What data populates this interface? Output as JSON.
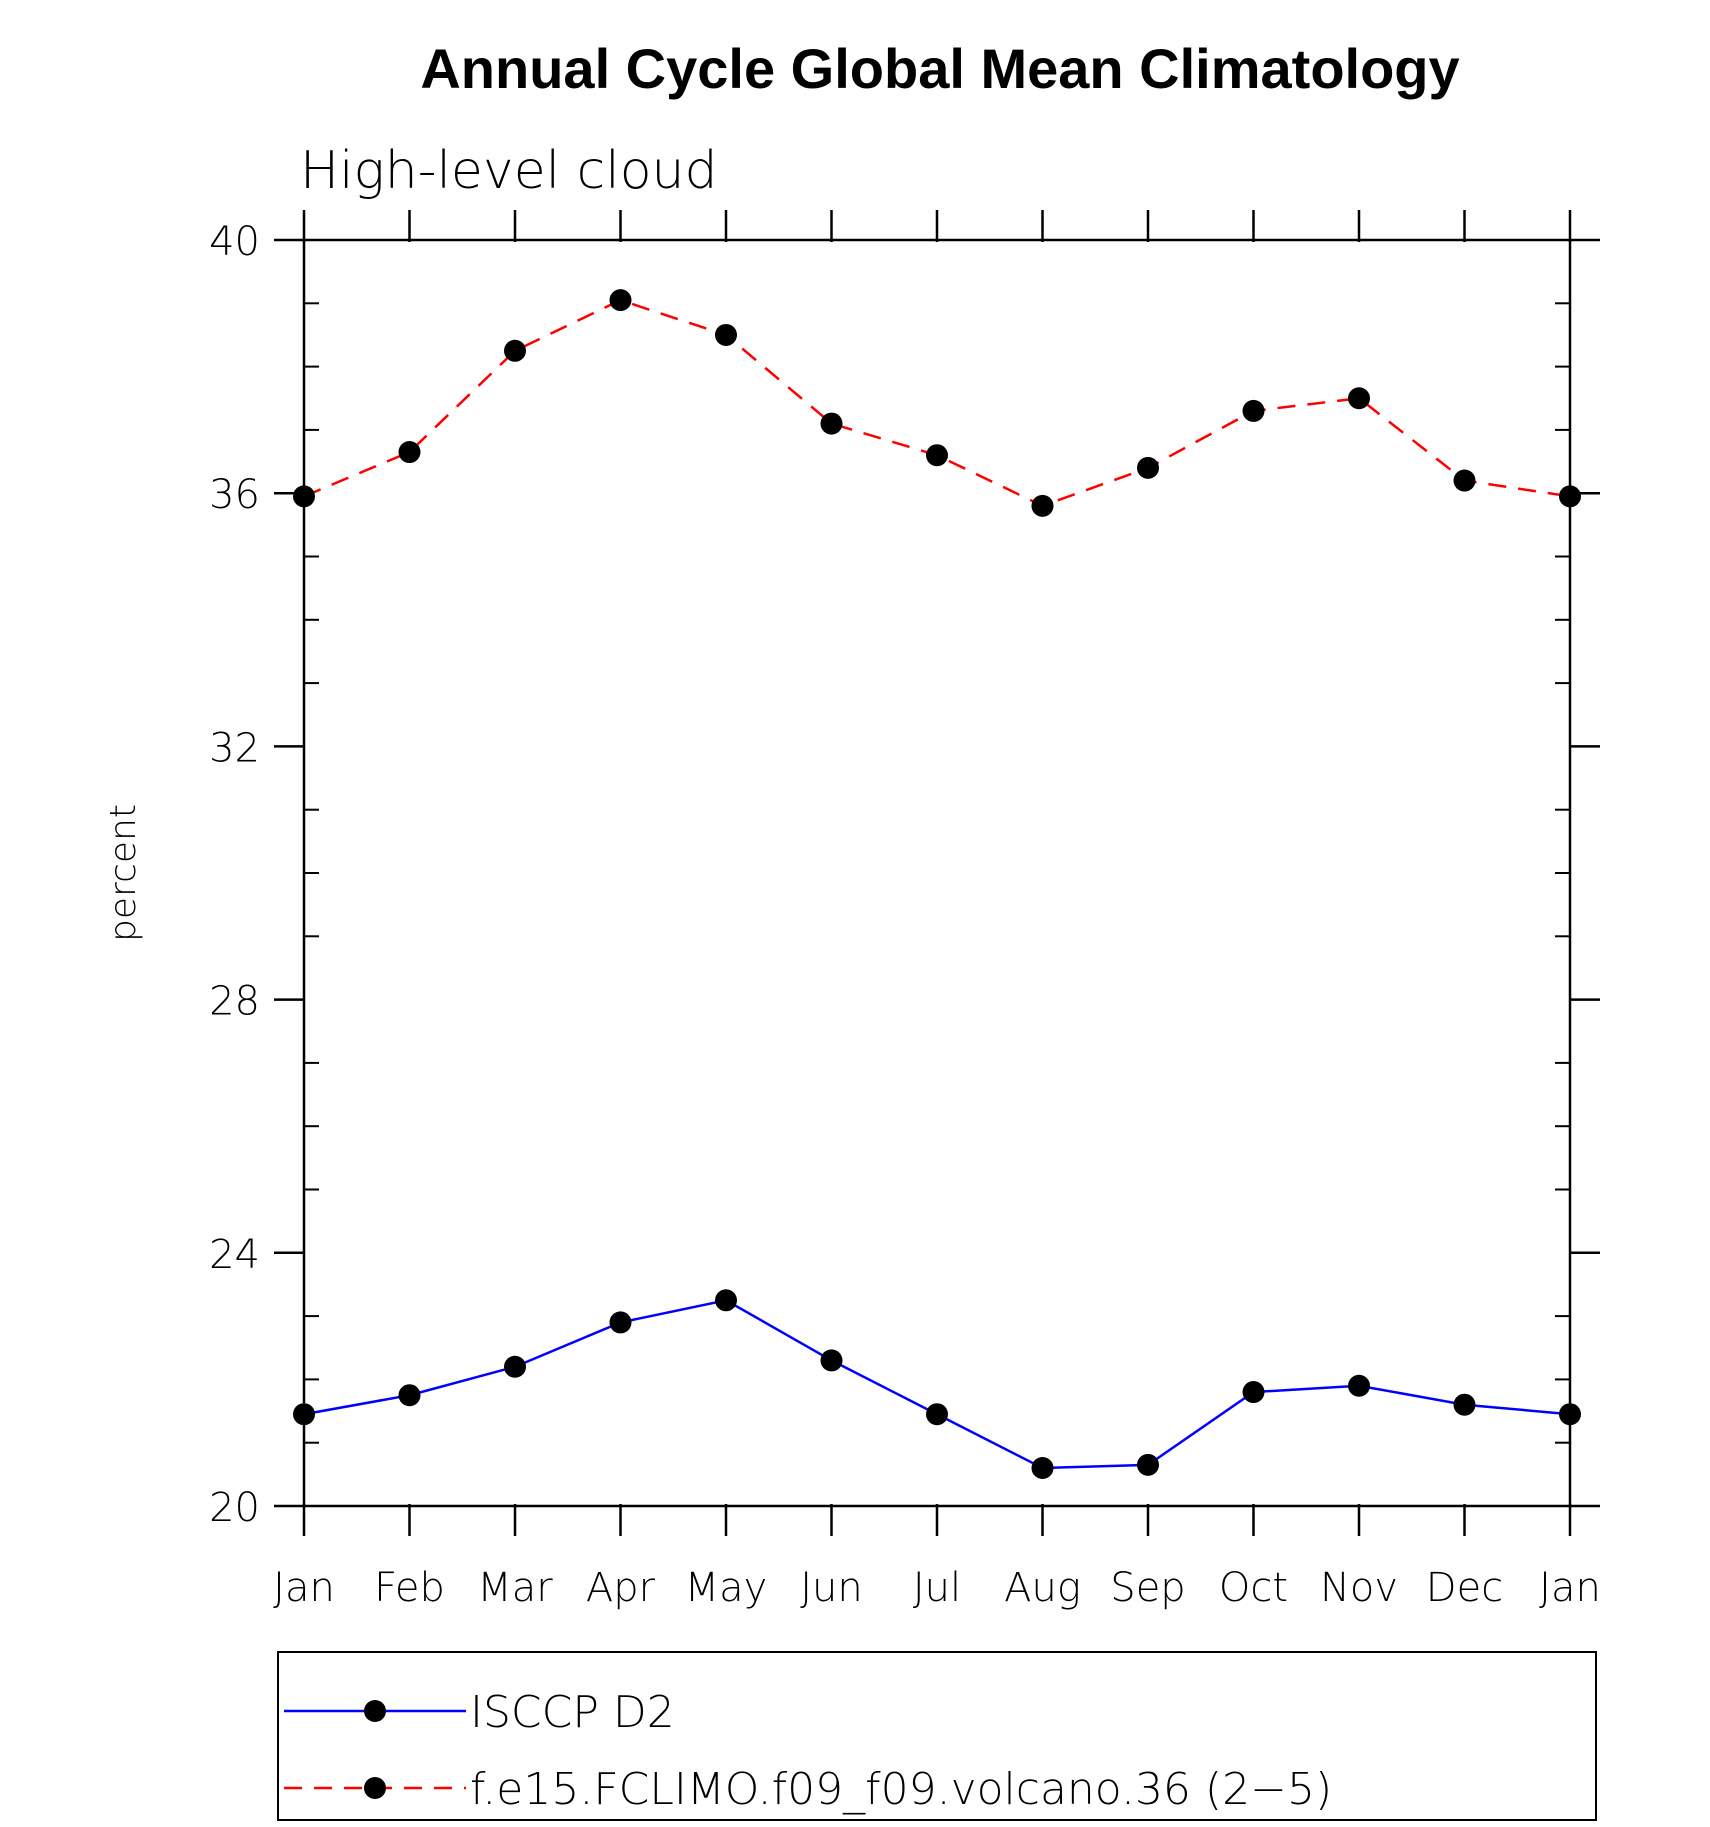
{
  "chart_data": {
    "type": "line",
    "title": "Annual Cycle Global Mean Climatology",
    "subtitle": "High-level cloud",
    "xlabel": "",
    "ylabel": "percent",
    "categories": [
      "Jan",
      "Feb",
      "Mar",
      "Apr",
      "May",
      "Jun",
      "Jul",
      "Aug",
      "Sep",
      "Oct",
      "Nov",
      "Dec",
      "Jan"
    ],
    "ylim": [
      20,
      40
    ],
    "yticks": [
      20,
      24,
      28,
      32,
      36,
      40
    ],
    "grid": false,
    "legend_position": "bottom",
    "series": [
      {
        "name": "ISCCP D2",
        "color": "#0000ff",
        "line_style": "solid",
        "marker": "filled-circle",
        "values": [
          21.45,
          21.75,
          22.2,
          22.9,
          23.25,
          22.3,
          21.45,
          20.6,
          20.65,
          21.8,
          21.9,
          21.6,
          21.45
        ]
      },
      {
        "name": "f.e15.FCLIMO.f09_f09.volcano.36 (2−5)",
        "color": "#ff0000",
        "line_style": "dashed",
        "marker": "filled-circle",
        "values": [
          35.95,
          36.65,
          38.25,
          39.05,
          38.5,
          37.1,
          36.6,
          35.8,
          36.4,
          37.3,
          37.5,
          36.2,
          35.95
        ]
      }
    ]
  }
}
